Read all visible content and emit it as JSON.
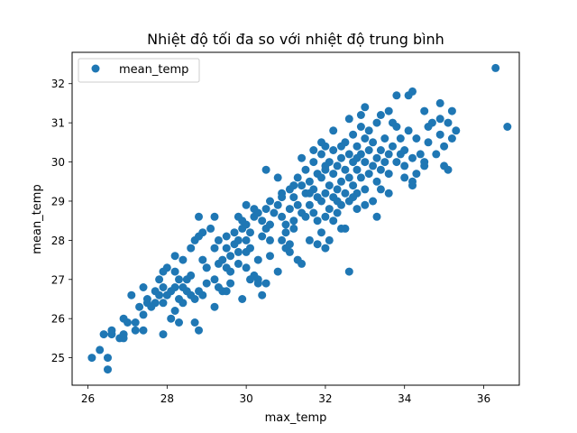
{
  "chart_data": {
    "type": "scatter",
    "title": "Nhiệt độ tối đa so với nhiệt độ trung bình",
    "xlabel": "max_temp",
    "ylabel": "mean_temp",
    "xlim": [
      25.6,
      36.9
    ],
    "ylim": [
      24.3,
      32.8
    ],
    "xticks": [
      26,
      28,
      30,
      32,
      34,
      36
    ],
    "yticks": [
      25,
      26,
      27,
      28,
      29,
      30,
      31,
      32
    ],
    "grid": false,
    "legend_position": "upper-left",
    "series": [
      {
        "name": "mean_temp",
        "color": "#1f77b4",
        "marker": "circle",
        "points": [
          [
            26.1,
            25.0
          ],
          [
            26.3,
            25.2
          ],
          [
            26.5,
            25.0
          ],
          [
            26.5,
            24.7
          ],
          [
            26.4,
            25.6
          ],
          [
            26.6,
            25.6
          ],
          [
            26.6,
            25.7
          ],
          [
            26.8,
            25.5
          ],
          [
            26.9,
            25.5
          ],
          [
            26.9,
            25.6
          ],
          [
            26.9,
            26.0
          ],
          [
            27.0,
            25.9
          ],
          [
            27.2,
            25.9
          ],
          [
            27.2,
            25.7
          ],
          [
            27.4,
            25.7
          ],
          [
            27.4,
            26.1
          ],
          [
            27.4,
            26.8
          ],
          [
            27.5,
            26.4
          ],
          [
            27.5,
            26.5
          ],
          [
            27.7,
            26.4
          ],
          [
            27.7,
            26.7
          ],
          [
            27.8,
            26.6
          ],
          [
            27.8,
            27.0
          ],
          [
            27.9,
            26.8
          ],
          [
            27.9,
            26.4
          ],
          [
            28.0,
            26.6
          ],
          [
            28.1,
            26.7
          ],
          [
            28.2,
            26.8
          ],
          [
            28.2,
            27.2
          ],
          [
            28.0,
            27.3
          ],
          [
            28.1,
            26.0
          ],
          [
            28.2,
            26.2
          ],
          [
            27.9,
            25.6
          ],
          [
            28.3,
            25.9
          ],
          [
            28.4,
            26.4
          ],
          [
            28.3,
            27.0
          ],
          [
            28.4,
            26.8
          ],
          [
            28.5,
            27.0
          ],
          [
            28.5,
            26.7
          ],
          [
            28.6,
            27.1
          ],
          [
            28.6,
            26.6
          ],
          [
            28.7,
            26.5
          ],
          [
            28.8,
            26.7
          ],
          [
            28.9,
            26.6
          ],
          [
            28.7,
            25.9
          ],
          [
            28.8,
            25.7
          ],
          [
            29.0,
            26.9
          ],
          [
            28.6,
            27.8
          ],
          [
            28.7,
            28.0
          ],
          [
            28.8,
            28.1
          ],
          [
            28.8,
            28.6
          ],
          [
            28.9,
            27.5
          ],
          [
            29.0,
            27.3
          ],
          [
            29.2,
            27.0
          ],
          [
            29.3,
            27.4
          ],
          [
            29.2,
            27.8
          ],
          [
            29.3,
            28.0
          ],
          [
            29.4,
            27.5
          ],
          [
            29.5,
            27.3
          ],
          [
            29.5,
            27.8
          ],
          [
            29.5,
            28.1
          ],
          [
            29.6,
            27.2
          ],
          [
            29.6,
            27.6
          ],
          [
            29.7,
            27.9
          ],
          [
            29.7,
            28.2
          ],
          [
            29.8,
            27.4
          ],
          [
            29.8,
            27.7
          ],
          [
            29.8,
            28.0
          ],
          [
            29.9,
            28.3
          ],
          [
            29.9,
            28.5
          ],
          [
            30.0,
            27.3
          ],
          [
            30.0,
            27.7
          ],
          [
            30.0,
            28.0
          ],
          [
            30.0,
            28.4
          ],
          [
            30.1,
            27.8
          ],
          [
            30.1,
            28.2
          ],
          [
            30.2,
            28.6
          ],
          [
            30.2,
            28.8
          ],
          [
            30.3,
            27.5
          ],
          [
            30.3,
            27.0
          ],
          [
            30.4,
            28.1
          ],
          [
            30.4,
            28.5
          ],
          [
            30.5,
            28.3
          ],
          [
            30.5,
            28.8
          ],
          [
            30.6,
            29.0
          ],
          [
            30.6,
            28.0
          ],
          [
            30.6,
            27.6
          ],
          [
            29.3,
            26.8
          ],
          [
            29.2,
            26.3
          ],
          [
            29.4,
            26.7
          ],
          [
            29.6,
            26.9
          ],
          [
            29.9,
            26.5
          ],
          [
            30.1,
            27.0
          ],
          [
            30.4,
            26.6
          ],
          [
            30.8,
            28.9
          ],
          [
            30.9,
            29.2
          ],
          [
            30.9,
            28.6
          ],
          [
            31.0,
            28.4
          ],
          [
            31.0,
            28.2
          ],
          [
            31.1,
            29.3
          ],
          [
            31.1,
            28.8
          ],
          [
            31.2,
            29.1
          ],
          [
            31.2,
            28.5
          ],
          [
            31.3,
            29.6
          ],
          [
            31.3,
            28.9
          ],
          [
            31.4,
            29.4
          ],
          [
            31.4,
            28.7
          ],
          [
            31.5,
            29.8
          ],
          [
            31.5,
            29.2
          ],
          [
            31.5,
            28.6
          ],
          [
            31.6,
            29.5
          ],
          [
            31.6,
            28.9
          ],
          [
            31.7,
            30.0
          ],
          [
            31.7,
            29.3
          ],
          [
            31.7,
            28.7
          ],
          [
            31.8,
            29.7
          ],
          [
            31.8,
            29.1
          ],
          [
            31.8,
            28.5
          ],
          [
            31.9,
            30.2
          ],
          [
            31.9,
            29.6
          ],
          [
            31.9,
            29.0
          ],
          [
            32.0,
            30.4
          ],
          [
            32.0,
            29.8
          ],
          [
            32.0,
            29.2
          ],
          [
            32.0,
            28.6
          ],
          [
            32.1,
            30.0
          ],
          [
            32.1,
            29.4
          ],
          [
            32.1,
            28.8
          ],
          [
            32.2,
            30.3
          ],
          [
            32.2,
            29.7
          ],
          [
            32.2,
            29.1
          ],
          [
            32.2,
            28.5
          ],
          [
            32.3,
            29.9
          ],
          [
            32.3,
            29.3
          ],
          [
            32.3,
            28.7
          ],
          [
            32.4,
            30.1
          ],
          [
            32.4,
            29.5
          ],
          [
            32.4,
            28.9
          ],
          [
            32.5,
            30.5
          ],
          [
            32.5,
            29.8
          ],
          [
            32.5,
            29.2
          ],
          [
            32.6,
            30.2
          ],
          [
            32.6,
            29.6
          ],
          [
            32.6,
            29.0
          ],
          [
            32.7,
            30.7
          ],
          [
            32.7,
            30.0
          ],
          [
            32.7,
            29.4
          ],
          [
            32.8,
            30.4
          ],
          [
            32.8,
            29.8
          ],
          [
            32.8,
            29.2
          ],
          [
            32.9,
            30.9
          ],
          [
            32.9,
            30.2
          ],
          [
            32.9,
            29.6
          ],
          [
            33.0,
            30.6
          ],
          [
            33.0,
            30.0
          ],
          [
            33.0,
            29.3
          ],
          [
            33.1,
            30.8
          ],
          [
            33.1,
            30.3
          ],
          [
            33.1,
            29.7
          ],
          [
            33.2,
            30.5
          ],
          [
            33.2,
            29.9
          ],
          [
            33.3,
            30.1
          ],
          [
            33.3,
            29.5
          ],
          [
            33.4,
            30.3
          ],
          [
            33.4,
            29.8
          ],
          [
            33.5,
            30.6
          ],
          [
            33.5,
            30.0
          ],
          [
            33.6,
            30.2
          ],
          [
            33.6,
            29.7
          ],
          [
            33.7,
            30.4
          ],
          [
            33.8,
            30.0
          ],
          [
            33.9,
            30.6
          ],
          [
            34.0,
            30.3
          ],
          [
            34.1,
            30.8
          ],
          [
            34.2,
            30.1
          ],
          [
            34.3,
            30.6
          ],
          [
            34.4,
            30.2
          ],
          [
            34.5,
            30.0
          ],
          [
            34.5,
            31.3
          ],
          [
            34.6,
            30.5
          ],
          [
            34.7,
            31.0
          ],
          [
            34.8,
            30.2
          ],
          [
            34.9,
            30.7
          ],
          [
            35.0,
            30.4
          ],
          [
            35.1,
            31.0
          ],
          [
            35.2,
            30.6
          ],
          [
            35.0,
            29.9
          ],
          [
            35.1,
            29.8
          ],
          [
            35.3,
            30.8
          ],
          [
            34.9,
            31.1
          ],
          [
            34.5,
            29.9
          ],
          [
            34.3,
            29.7
          ],
          [
            34.2,
            29.5
          ],
          [
            34.0,
            29.9
          ],
          [
            33.8,
            30.9
          ],
          [
            33.6,
            31.3
          ],
          [
            33.3,
            31.0
          ],
          [
            32.7,
            29.1
          ],
          [
            32.4,
            28.3
          ],
          [
            32.1,
            28.0
          ],
          [
            32.0,
            27.8
          ],
          [
            31.6,
            28.0
          ],
          [
            31.3,
            27.5
          ],
          [
            31.0,
            27.8
          ],
          [
            30.8,
            27.2
          ],
          [
            30.5,
            26.9
          ],
          [
            31.4,
            27.4
          ],
          [
            32.6,
            27.2
          ],
          [
            33.3,
            28.6
          ],
          [
            33.0,
            28.9
          ],
          [
            34.2,
            29.4
          ],
          [
            31.8,
            27.9
          ],
          [
            30.9,
            28.0
          ],
          [
            31.1,
            27.7
          ],
          [
            30.7,
            28.7
          ],
          [
            31.2,
            28.3
          ],
          [
            29.0,
            27.3
          ],
          [
            28.4,
            27.5
          ],
          [
            28.2,
            27.6
          ],
          [
            27.9,
            27.2
          ],
          [
            28.3,
            26.5
          ],
          [
            27.6,
            26.3
          ],
          [
            27.3,
            26.3
          ],
          [
            27.1,
            26.6
          ],
          [
            28.9,
            28.2
          ],
          [
            29.1,
            28.3
          ],
          [
            29.2,
            28.6
          ],
          [
            30.2,
            27.1
          ],
          [
            30.3,
            26.9
          ],
          [
            29.5,
            26.7
          ],
          [
            30.5,
            29.8
          ],
          [
            30.8,
            29.6
          ],
          [
            31.4,
            30.1
          ],
          [
            31.9,
            30.5
          ],
          [
            32.2,
            30.8
          ],
          [
            32.6,
            31.1
          ],
          [
            33.0,
            31.4
          ],
          [
            33.4,
            31.2
          ],
          [
            33.8,
            31.7
          ],
          [
            34.2,
            31.8
          ],
          [
            35.2,
            31.3
          ],
          [
            34.6,
            30.9
          ],
          [
            32.0,
            29.9
          ],
          [
            31.6,
            29.2
          ],
          [
            31.2,
            29.4
          ],
          [
            30.9,
            29.1
          ],
          [
            30.6,
            28.4
          ],
          [
            30.3,
            28.7
          ],
          [
            30.0,
            28.9
          ],
          [
            29.8,
            28.6
          ],
          [
            32.5,
            28.3
          ],
          [
            32.8,
            28.8
          ],
          [
            33.2,
            29.0
          ],
          [
            33.6,
            29.2
          ],
          [
            32.3,
            29.0
          ],
          [
            31.9,
            28.2
          ],
          [
            31.1,
            27.9
          ],
          [
            32.9,
            31.2
          ],
          [
            33.7,
            31.0
          ],
          [
            34.1,
            31.7
          ],
          [
            33.9,
            30.2
          ],
          [
            34.0,
            29.6
          ],
          [
            33.4,
            29.3
          ],
          [
            32.4,
            30.4
          ],
          [
            32.8,
            30.1
          ],
          [
            31.7,
            30.3
          ],
          [
            36.3,
            32.4
          ],
          [
            36.6,
            30.9
          ],
          [
            34.9,
            31.5
          ]
        ]
      }
    ]
  }
}
